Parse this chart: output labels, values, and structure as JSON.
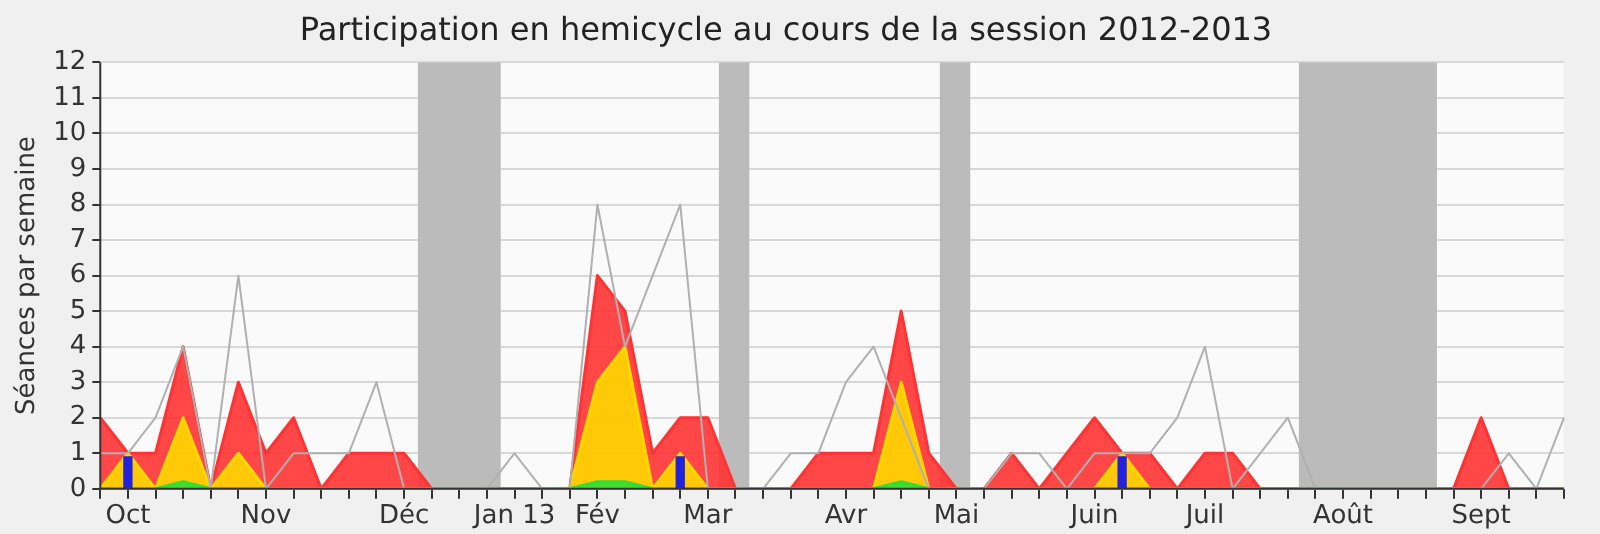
{
  "chart_data": {
    "type": "area",
    "title": "Participation en hemicycle au cours de la session 2012-2013",
    "ylabel": "Séances par semaine",
    "categories": [
      null,
      "Oct",
      null,
      null,
      null,
      null,
      "Nov",
      null,
      null,
      null,
      null,
      "Déc",
      null,
      null,
      null,
      "Jan 13",
      null,
      null,
      "Fév",
      null,
      null,
      null,
      "Mar",
      null,
      null,
      null,
      null,
      "Avr",
      null,
      null,
      null,
      "Mai",
      null,
      null,
      null,
      null,
      "Juin",
      null,
      null,
      null,
      "Juil",
      null,
      null,
      null,
      null,
      "Août",
      null,
      null,
      null,
      null,
      "Sept",
      null,
      null,
      null
    ],
    "series": [
      {
        "color": "#ff3333",
        "values": [
          2,
          1,
          1,
          4,
          0,
          3,
          1,
          2,
          0,
          1,
          1,
          1,
          0,
          0,
          0,
          0,
          0,
          0,
          6,
          5,
          1,
          2,
          2,
          0,
          0,
          0,
          1,
          1,
          1,
          5,
          1,
          0,
          0,
          1,
          0,
          1,
          2,
          1,
          1,
          0,
          1,
          1,
          0,
          0,
          0,
          0,
          0,
          0,
          0,
          0,
          2,
          0,
          0,
          0
        ]
      },
      {
        "color": "#ffd700",
        "values": [
          0,
          1,
          0,
          2,
          0,
          1,
          0,
          0,
          0,
          0,
          0,
          0,
          0,
          0,
          0,
          0,
          0,
          0,
          3,
          4,
          0,
          1,
          0,
          0,
          0,
          0,
          0,
          0,
          0,
          3,
          0,
          0,
          0,
          0,
          0,
          0,
          0,
          1,
          0,
          0,
          0,
          0,
          0,
          0,
          0,
          0,
          0,
          0,
          0,
          0,
          0,
          0,
          0,
          0
        ]
      },
      {
        "color": "#33dd33",
        "values": [
          0,
          0,
          0,
          0.2,
          0,
          0,
          0,
          0,
          0,
          0,
          0,
          0,
          0,
          0,
          0,
          0,
          0,
          0,
          0.2,
          0.2,
          0,
          0,
          0,
          0,
          0,
          0,
          0,
          0,
          0,
          0.2,
          0,
          0,
          0,
          0,
          0,
          0,
          0,
          0,
          0,
          0,
          0,
          0,
          0,
          0,
          0,
          0,
          0,
          0,
          0,
          0,
          0,
          0,
          0,
          0
        ]
      },
      {
        "type": "bar",
        "color": "#2222dd",
        "values": [
          null,
          0.9,
          null,
          null,
          null,
          null,
          null,
          null,
          null,
          null,
          null,
          null,
          null,
          null,
          null,
          null,
          null,
          null,
          null,
          null,
          null,
          0.9,
          null,
          null,
          null,
          null,
          null,
          null,
          null,
          null,
          null,
          null,
          null,
          null,
          null,
          null,
          null,
          0.9,
          null,
          null,
          null,
          null,
          null,
          null,
          null,
          null,
          null,
          null,
          null,
          null,
          null,
          null,
          null,
          null
        ]
      },
      {
        "type": "line",
        "color": "#b0b0b0",
        "values": [
          1,
          1,
          2,
          4,
          0,
          6,
          0,
          1,
          1,
          1,
          3,
          0,
          0,
          0,
          0,
          1,
          0,
          0,
          8,
          4,
          6,
          8,
          0,
          0,
          0,
          1,
          1,
          3,
          4,
          2,
          0,
          0,
          0,
          1,
          1,
          0,
          1,
          1,
          1,
          2,
          4,
          0,
          1,
          2,
          0,
          0,
          0,
          0,
          0,
          0,
          0,
          1,
          0,
          2
        ]
      }
    ],
    "ylim": [
      0,
      12
    ],
    "yticks": [
      0,
      1,
      2,
      3,
      4,
      5,
      6,
      7,
      8,
      9,
      10,
      11,
      12
    ],
    "grid": "y"
  }
}
